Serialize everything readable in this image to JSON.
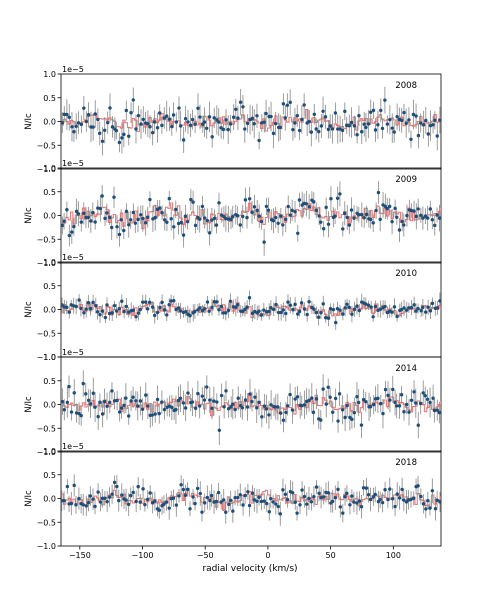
{
  "chart_data": {
    "type": "scatter",
    "shared_x": {
      "label": "radial velocity (km/s)",
      "range": [
        -165,
        138
      ],
      "ticks": [
        -150,
        -100,
        -50,
        0,
        50,
        100
      ],
      "tick_labels": [
        "−150",
        "−100",
        "−50",
        "0",
        "50",
        "100"
      ]
    },
    "y_axis": {
      "label": "N/Ic",
      "range": [
        -1.0,
        1.0
      ],
      "ticks": [
        -1.0,
        -0.5,
        0.0,
        0.5,
        1.0
      ],
      "tick_labels": [
        "−1.0",
        "−0.5",
        "0.0",
        "0.5",
        "1.0"
      ],
      "offset_label": "1e−5"
    },
    "colors": {
      "points": "#1f4e79",
      "errorbars": "#808080",
      "model": "#e06666"
    },
    "panels": [
      {
        "label": "2008",
        "scatter_amp": 0.32,
        "err_amp": 0.25,
        "model_amp": 0.1,
        "seed": 11
      },
      {
        "label": "2009",
        "scatter_amp": 0.28,
        "err_amp": 0.22,
        "model_amp": 0.12,
        "seed": 23
      },
      {
        "label": "2010",
        "scatter_amp": 0.15,
        "err_amp": 0.14,
        "model_amp": 0.08,
        "seed": 37
      },
      {
        "label": "2014",
        "scatter_amp": 0.3,
        "err_amp": 0.25,
        "model_amp": 0.1,
        "seed": 41
      },
      {
        "label": "2018",
        "scatter_amp": 0.24,
        "err_amp": 0.2,
        "model_amp": 0.1,
        "seed": 53
      }
    ]
  }
}
